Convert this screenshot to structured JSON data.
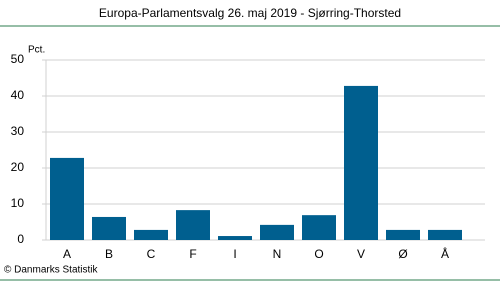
{
  "chart_data": {
    "type": "bar",
    "title": "Europa-Parlamentsvalg 26. maj 2019 - Sjørring-Thorsted",
    "y_label": "Pct.",
    "source": "© Danmarks Statistik",
    "categories": [
      "A",
      "B",
      "C",
      "F",
      "I",
      "N",
      "O",
      "V",
      "Ø",
      "Å"
    ],
    "values": [
      22.8,
      6.4,
      2.8,
      8.3,
      1.1,
      4.2,
      6.9,
      42.8,
      2.8,
      2.8
    ],
    "color": "#005f8f",
    "ylim": [
      0,
      50
    ],
    "yticks": [
      0,
      10,
      20,
      30,
      40,
      50
    ],
    "grid": true
  }
}
